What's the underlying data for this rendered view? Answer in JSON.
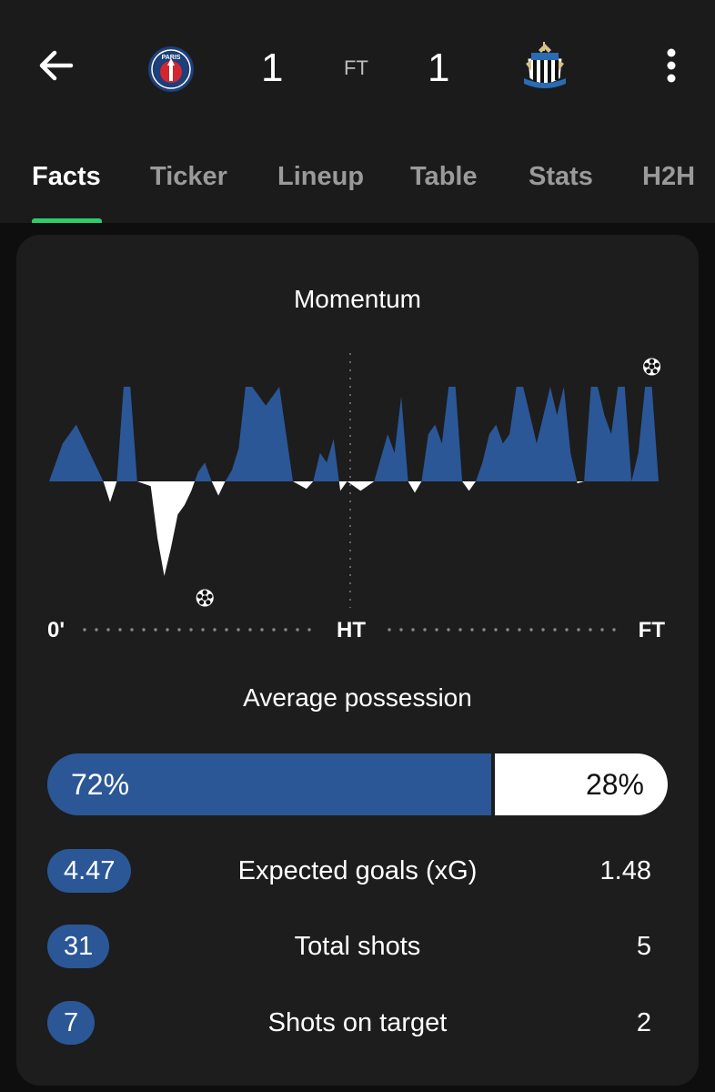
{
  "match": {
    "home_score": "1",
    "away_score": "1",
    "status": "FT",
    "home_crest_text": "PARIS"
  },
  "tabs": [
    {
      "label": "Facts",
      "active": true
    },
    {
      "label": "Ticker",
      "active": false
    },
    {
      "label": "Lineup",
      "active": false
    },
    {
      "label": "Table",
      "active": false
    },
    {
      "label": "Stats",
      "active": false
    },
    {
      "label": "H2H",
      "active": false
    }
  ],
  "momentum": {
    "title": "Momentum",
    "axis_start": "0'",
    "axis_half": "HT",
    "axis_end": "FT",
    "home_color": "#2b5797",
    "away_color": "#ffffff"
  },
  "chart_data": {
    "type": "area",
    "x": [
      0,
      2,
      4,
      6,
      8,
      9,
      10,
      11,
      12,
      13,
      15,
      16,
      17,
      18,
      19,
      20,
      21,
      22,
      23,
      24,
      25,
      26,
      27,
      28,
      29,
      30,
      32,
      34,
      36,
      38,
      39,
      40,
      41,
      42,
      43,
      44,
      46,
      48,
      50,
      51,
      52,
      53,
      54,
      55,
      56,
      57,
      58,
      59,
      60,
      61,
      62,
      63,
      64,
      65,
      66,
      67,
      68,
      69,
      70,
      72,
      74,
      75,
      76,
      77,
      78,
      79,
      80,
      81,
      82,
      83,
      84,
      85,
      86,
      87,
      88,
      89,
      90
    ],
    "values": [
      0,
      40,
      60,
      30,
      0,
      -22,
      0,
      100,
      100,
      0,
      -5,
      -60,
      -100,
      -70,
      -35,
      -25,
      -10,
      10,
      20,
      0,
      -15,
      0,
      12,
      35,
      100,
      100,
      80,
      100,
      0,
      -8,
      0,
      30,
      20,
      45,
      -10,
      0,
      -10,
      0,
      50,
      30,
      90,
      0,
      -12,
      0,
      50,
      60,
      40,
      100,
      100,
      0,
      -10,
      0,
      20,
      50,
      60,
      40,
      50,
      100,
      100,
      40,
      100,
      70,
      100,
      30,
      -2,
      0,
      100,
      100,
      70,
      50,
      100,
      100,
      0,
      30,
      100,
      100,
      0
    ],
    "y_range": [
      -100,
      100
    ],
    "x_range": [
      0,
      90
    ],
    "goal_events": [
      {
        "team": "home",
        "minute": 89
      },
      {
        "team": "away",
        "minute": 23
      }
    ]
  },
  "possession": {
    "title": "Average possession",
    "home_value": 72,
    "away_value": 28,
    "home_label": "72%",
    "away_label": "28%"
  },
  "stats": [
    {
      "label": "Expected goals (xG)",
      "home": "4.47",
      "away": "1.48"
    },
    {
      "label": "Total shots",
      "home": "31",
      "away": "5"
    },
    {
      "label": "Shots on target",
      "home": "7",
      "away": "2"
    }
  ],
  "icons": {
    "back": "arrow-left-icon",
    "more": "more-vertical-icon",
    "ball": "football-icon"
  }
}
